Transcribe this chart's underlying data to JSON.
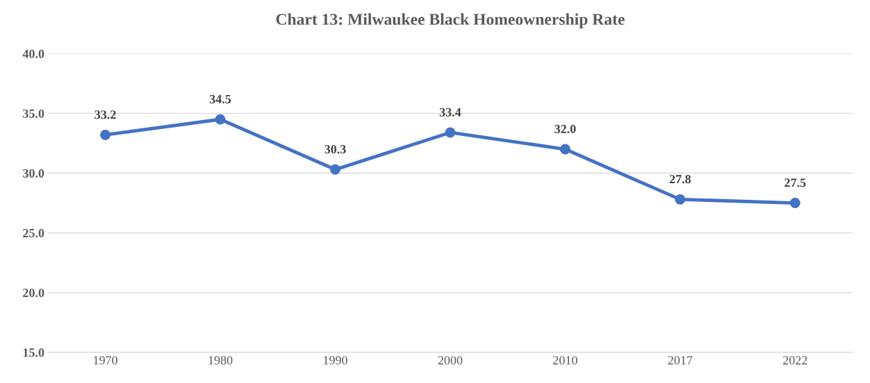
{
  "chart_data": {
    "type": "line",
    "title": "Chart 13: Milwaukee Black Homeownership Rate",
    "categories": [
      "1970",
      "1980",
      "1990",
      "2000",
      "2010",
      "2017",
      "2022"
    ],
    "series": [
      {
        "color": "#4472c4",
        "values": [
          33.2,
          34.5,
          30.3,
          33.4,
          32.0,
          27.8,
          27.5
        ],
        "value_labels": [
          "33.2",
          "34.5",
          "30.3",
          "33.4",
          "32.0",
          "27.8",
          "27.5"
        ]
      }
    ],
    "ylim": [
      15,
      40
    ],
    "yticks": [
      {
        "value": 15,
        "label": "15.0"
      },
      {
        "value": 20,
        "label": "20.0"
      },
      {
        "value": 25,
        "label": "25.0"
      },
      {
        "value": 30,
        "label": "30.0"
      },
      {
        "value": 35,
        "label": "35.0"
      },
      {
        "value": 40,
        "label": "40.0"
      }
    ],
    "grid": "y",
    "marker": "circle",
    "line_style": "solid"
  }
}
